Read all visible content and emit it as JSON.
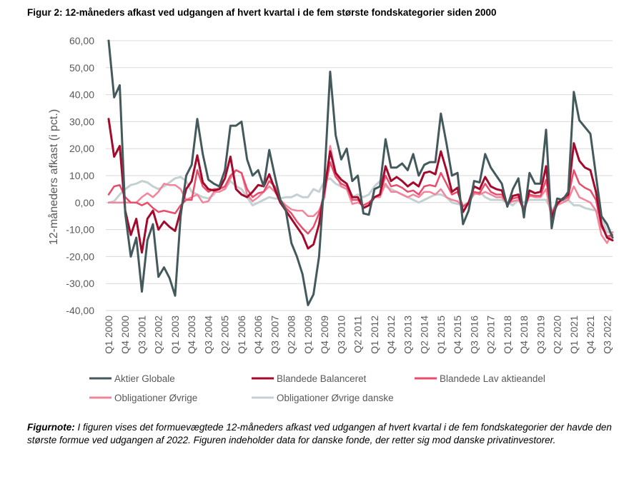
{
  "title": "Figur 2: 12-måneders afkast ved udgangen af hvert kvartal i de fem største fondskategorier siden 2000",
  "note_label": "Figurnote:",
  "note_text": " I figuren vises det formuevægtede 12-måneders afkast ved udgangen af hvert kvartal i de fem fondskategorier der havde den største formue ved udgangen af 2022. Figuren indeholder data for danske fonde, der retter sig mod danske privatinvestorer.",
  "chart_data": {
    "type": "line",
    "ylabel": "12-måneders afkast (i pct.)",
    "xlabel": "",
    "ylim": [
      -40,
      60
    ],
    "yticks": [
      -40,
      -30,
      -20,
      -10,
      0,
      10,
      20,
      30,
      40,
      50,
      60
    ],
    "ytick_labels": [
      "-40,00",
      "-30,00",
      "-20,00",
      "-10,00",
      "0,00",
      "10,00",
      "20,00",
      "30,00",
      "40,00",
      "50,00",
      "60,00"
    ],
    "x_tick_labels": [
      "Q1 2000",
      "Q4 2000",
      "Q3 2001",
      "Q2 2002",
      "Q1 2003",
      "Q4 2003",
      "Q3 2004",
      "Q2 2005",
      "Q1 2006",
      "Q4 2006",
      "Q3 2007",
      "Q2 2008",
      "Q1 2009",
      "Q4 2009",
      "Q3 2010",
      "Q2 2011",
      "Q1 2012",
      "Q4 2012",
      "Q3 2013",
      "Q2 2014",
      "Q1 2015",
      "Q4 2015",
      "Q3 2016",
      "Q2 2017",
      "Q1 2018",
      "Q4 2018",
      "Q3 2019",
      "Q2 2020",
      "Q1 2021",
      "Q4 2021",
      "Q3 2022"
    ],
    "n_points": 92,
    "grid": "horizontal",
    "legend_position": "bottom",
    "series": [
      {
        "name": "Aktier Globale",
        "color": "#44595c",
        "width": 3,
        "values": [
          60,
          39,
          43.5,
          -4,
          -20,
          -13,
          -33,
          -14,
          -8,
          -27.5,
          -24,
          -28,
          -34.5,
          -5,
          10,
          14,
          31,
          18,
          8.5,
          7,
          6,
          12,
          28.5,
          28.5,
          30,
          16,
          10,
          12,
          6,
          19.5,
          10,
          1,
          -3,
          -15,
          -20,
          -26.5,
          -38,
          -34,
          -20,
          10,
          48.5,
          25,
          16,
          20,
          8,
          10,
          -4,
          -4.5,
          5,
          6,
          23.5,
          13,
          13,
          14.5,
          12,
          18,
          10,
          14,
          15,
          15,
          33,
          22,
          10,
          11,
          -8,
          -3,
          8,
          7.5,
          18,
          13,
          10,
          7,
          -1.5,
          5,
          9,
          -5.5,
          11,
          7,
          7,
          27,
          -9.5,
          1.5,
          1,
          4,
          41,
          30.5,
          28,
          25.5,
          10,
          -5,
          -8,
          -13
        ]
      },
      {
        "name": "Blandede Balanceret",
        "color": "#a30a2c",
        "width": 3,
        "values": [
          31,
          17,
          21,
          -3,
          -12,
          -6,
          -18.5,
          -6,
          -3,
          -10,
          -7,
          -9,
          -10.5,
          -3,
          5,
          8,
          17.5,
          7.5,
          5,
          4.5,
          5,
          9,
          17,
          5,
          3,
          2,
          4,
          6.5,
          6,
          10.5,
          5,
          0,
          -3,
          -6,
          -9,
          -12,
          -17,
          -15.5,
          -8,
          5,
          19,
          11,
          8.5,
          7,
          2,
          2,
          -2,
          -1,
          2,
          3,
          13.5,
          8,
          9.5,
          8,
          6,
          7.5,
          6,
          11,
          11.5,
          10.5,
          19,
          12,
          4,
          5.5,
          -3.5,
          0,
          6,
          5,
          9.5,
          6,
          5,
          4.5,
          -1,
          2.5,
          3,
          -3.5,
          4.5,
          3.5,
          4,
          13.5,
          -5.5,
          -0.5,
          1.5,
          3,
          22,
          15.5,
          13,
          12,
          4,
          -8,
          -13,
          -14
        ]
      },
      {
        "name": "Blandede Lav aktieandel",
        "color": "#e84e6c",
        "width": 2.5,
        "values": [
          3,
          6,
          6.5,
          2,
          0,
          0,
          -1,
          0,
          -2,
          -3.5,
          -3,
          -3.5,
          -4,
          -1,
          1,
          1,
          12,
          6,
          4,
          5,
          5,
          6,
          10,
          12,
          11,
          5,
          2,
          3.5,
          4,
          8,
          6,
          1,
          -2,
          -4,
          -7,
          -9.5,
          -11.5,
          -9,
          -4,
          4,
          15,
          9.5,
          7,
          6,
          1,
          1,
          -1,
          0,
          2,
          3,
          10,
          6,
          6.5,
          5.5,
          4,
          4.5,
          3,
          6,
          6.5,
          6,
          11,
          7,
          3,
          4,
          -1.5,
          0,
          4,
          3.5,
          7,
          4,
          3,
          3,
          -0.5,
          1.5,
          2,
          -2,
          3,
          2.5,
          2.5,
          8.5,
          -4,
          0,
          1,
          2,
          12,
          7,
          5.5,
          4.5,
          1,
          -9,
          -12.5,
          -12
        ]
      },
      {
        "name": "Obligationer Øvrige",
        "color": "#f2849c",
        "width": 2.5,
        "values": [
          0,
          0,
          0,
          0,
          0,
          0,
          2,
          3.5,
          2,
          4,
          7,
          6.5,
          6.5,
          5,
          1,
          2,
          3,
          0,
          0.5,
          4,
          4,
          5,
          9,
          12,
          11,
          3,
          0.5,
          2,
          4,
          6,
          4,
          1,
          -1,
          -2.5,
          -3,
          -3,
          -5,
          -5,
          -3,
          2,
          21,
          11,
          6,
          5,
          -0.5,
          0,
          -1,
          0,
          2,
          2,
          7,
          4,
          4,
          3,
          2,
          3,
          2,
          4,
          4,
          3,
          5,
          2,
          1,
          0.5,
          -1.5,
          0,
          3.5,
          3,
          4,
          3,
          2,
          2,
          -0.5,
          0.5,
          1,
          -2,
          2.5,
          2,
          2,
          5,
          -6,
          -1,
          0,
          1,
          6,
          2,
          1,
          0,
          -3,
          -12,
          -15,
          -11
        ]
      },
      {
        "name": "Obligationer Øvrige danske",
        "color": "#c4d0d1",
        "width": 3,
        "values": [
          0,
          0.5,
          3,
          5,
          6.5,
          7,
          8,
          7.5,
          6,
          5,
          6,
          7.5,
          9,
          9.5,
          8,
          4,
          3,
          2,
          1.5,
          3,
          6,
          5,
          8,
          6,
          5,
          2,
          -1,
          0,
          1,
          2,
          1.5,
          1.5,
          2,
          2,
          3,
          2,
          2,
          5,
          4,
          8,
          9,
          7,
          6,
          5,
          2,
          3,
          2,
          3,
          6,
          8,
          6,
          5,
          4,
          3,
          2,
          1,
          0,
          1,
          2,
          3,
          3,
          2,
          0,
          -0.5,
          -1,
          0,
          3,
          4,
          2,
          1,
          1,
          1,
          0,
          -1,
          1,
          0,
          1,
          1,
          1,
          1,
          -3,
          0,
          1,
          1,
          -1,
          -1,
          -2,
          -2.5,
          -3,
          -5,
          -11,
          -11
        ]
      }
    ]
  }
}
